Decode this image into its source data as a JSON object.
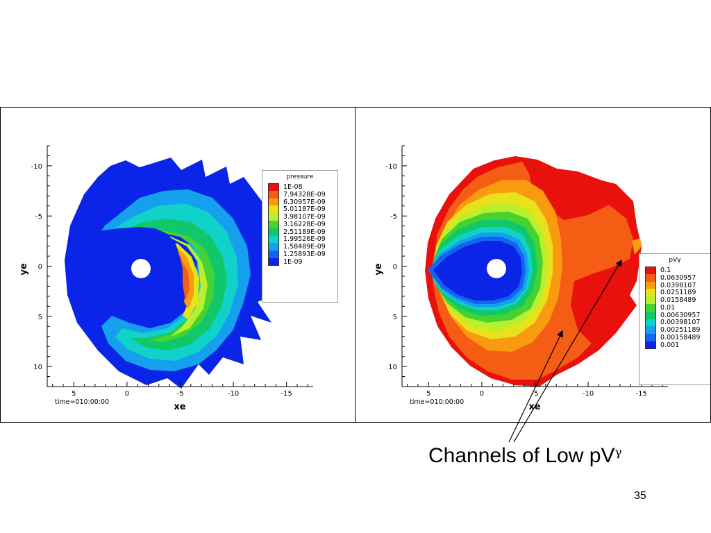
{
  "chart_data": [
    {
      "type": "heatmap",
      "title": "",
      "xlabel": "xe",
      "ylabel": "ye",
      "x_ticks": [
        "5",
        "0",
        "-5",
        "-10",
        "-15"
      ],
      "y_ticks": [
        "-10",
        "-5",
        "0",
        "5",
        "10"
      ],
      "xlim": [
        7.5,
        -17.5
      ],
      "ylim": [
        -12,
        12
      ],
      "time_label": "time=010:00:00",
      "legend_title": "pressure",
      "legend_position": "right",
      "levels": [
        "1E-08",
        "7.94328E-09",
        "6.30957E-09",
        "5.01187E-09",
        "3.98107E-09",
        "3.16228E-09",
        "2.51189E-09",
        "1.99526E-09",
        "1.58489E-09",
        "1.25893E-09",
        "1E-09"
      ],
      "colors": [
        "#e8110c",
        "#f55c14",
        "#f99a10",
        "#e8e21a",
        "#b8f030",
        "#46d230",
        "#10c86a",
        "#10d2c8",
        "#14a0ec",
        "#1464f0",
        "#0a24e8"
      ]
    },
    {
      "type": "heatmap",
      "title": "",
      "xlabel": "xe",
      "ylabel": "ye",
      "x_ticks": [
        "5",
        "0",
        "-5",
        "-10",
        "-15"
      ],
      "y_ticks": [
        "-10",
        "-5",
        "0",
        "5",
        "10"
      ],
      "xlim": [
        7.5,
        -17.5
      ],
      "ylim": [
        -12,
        12
      ],
      "time_label": "time=010:00:00",
      "legend_title": "pVγ",
      "legend_position": "right",
      "levels": [
        "0.1",
        "0.0630957",
        "0.0398107",
        "0.0251189",
        "0.0158489",
        "0.01",
        "0.00630957",
        "0.00398107",
        "0.00251189",
        "0.00158489",
        "0.001"
      ],
      "colors": [
        "#e8110c",
        "#f55c14",
        "#f99a10",
        "#e8e21a",
        "#b8f030",
        "#46d230",
        "#10c86a",
        "#10d2c8",
        "#14a0ec",
        "#1464f0",
        "#0a24e8"
      ]
    }
  ],
  "annotation": {
    "caption_main": "Channels of Low pV",
    "caption_sup": "γ"
  },
  "slide_number": "35"
}
